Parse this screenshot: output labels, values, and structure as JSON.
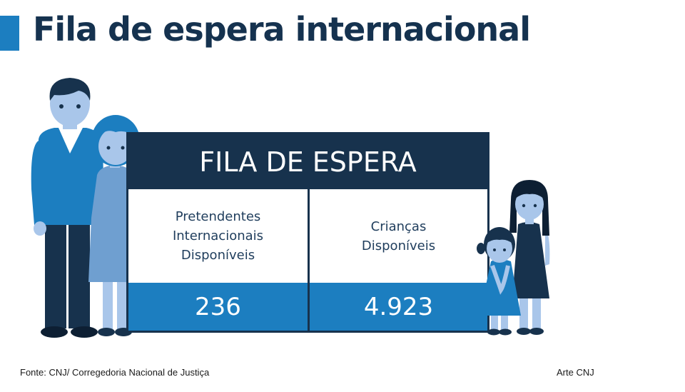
{
  "title": "Fila de espera internacional",
  "colors": {
    "accent": "#1c7ec0",
    "dark": "#17324d",
    "light_blue": "#6f9fd0",
    "pale_blue": "#a9c6ea"
  },
  "table": {
    "header": "FILA DE ESPERA",
    "columns": [
      {
        "label": "Pretendentes\nInternacionais\nDisponíveis",
        "value": "236"
      },
      {
        "label": "Crianças\nDisponíveis",
        "value": "4.923"
      }
    ]
  },
  "figures": {
    "adults_icon": "family-adults-illustration",
    "children_icon": "children-illustration"
  },
  "footer": {
    "source": "Fonte: CNJ/ Corregedoria Nacional de Justiça",
    "credit": "Arte CNJ"
  }
}
